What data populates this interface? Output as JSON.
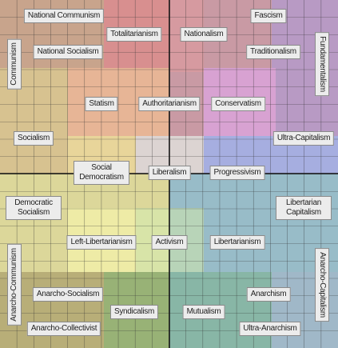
{
  "labels": [
    "National Communism",
    "Totalitarianism",
    "Nationalism",
    "Fascism",
    "Communism",
    "National Socialism",
    "Traditionalism",
    "Fundamentalism",
    "Statism",
    "Authoritarianism",
    "Conservatism",
    "Socialism",
    "Ultra-Capitalism",
    "Social Democratism",
    "Liberalism",
    "Progressivism",
    "Democratic Socialism",
    "Libertarian Capitalism",
    "Left-Libertarianism",
    "Activism",
    "Libertarianism",
    "Anarcho-Communism",
    "Anarcho-Capitalism",
    "Anarcho-Socialism",
    "Anarchism",
    "Syndicalism",
    "Mutualism",
    "Anarcho-Collectivist",
    "Ultra-Anarchism"
  ]
}
